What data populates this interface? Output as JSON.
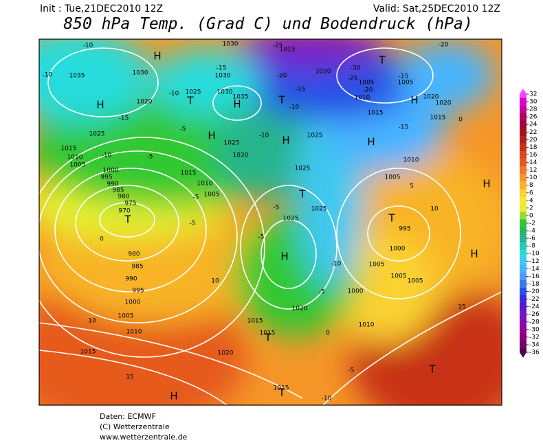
{
  "header": {
    "init": "Init : Tue,21DEC2010 12Z",
    "valid": "Valid: Sat,25DEC2010 12Z",
    "title": "850 hPa Temp. (Grad C) und Bodendruck (hPa)"
  },
  "colorbar": {
    "ticks": [
      32,
      30,
      28,
      26,
      24,
      22,
      20,
      18,
      16,
      14,
      12,
      10,
      8,
      6,
      4,
      2,
      0,
      -2,
      -4,
      -6,
      -8,
      -10,
      -12,
      -14,
      -16,
      -18,
      -20,
      -22,
      -24,
      -26,
      -28,
      -30,
      -32,
      -34,
      -36
    ],
    "colors": [
      "#ff40ff",
      "#e000d0",
      "#c8009a",
      "#b00060",
      "#a00838",
      "#a01414",
      "#b41e1e",
      "#c83214",
      "#dc461e",
      "#e65a1e",
      "#f07828",
      "#f59628",
      "#f8b428",
      "#fad232",
      "#fae632",
      "#e6f032",
      "#96dc32",
      "#32c832",
      "#28b464",
      "#28b48c",
      "#28c8b4",
      "#28dcdc",
      "#3cc8f0",
      "#46b4ff",
      "#5096ff",
      "#3c78f0",
      "#2850e6",
      "#3c28dc",
      "#5a14d2",
      "#7814c8",
      "#8c0ab4",
      "#960096",
      "#8c0078",
      "#780064",
      "#500050"
    ]
  },
  "map": {
    "labels": [
      "H",
      "H",
      "T",
      "H",
      "T",
      "H",
      "H",
      "T",
      "H",
      "T",
      "T",
      "H",
      "H",
      "T",
      "H",
      "H",
      "T",
      "T",
      "T",
      "H",
      "1035",
      "1030",
      "-10",
      "-10",
      "1025",
      "-15",
      "1015",
      "1010",
      "1005",
      "1000",
      "995",
      "990",
      "985",
      "980",
      "975",
      "970",
      "-10",
      "-5",
      "-5",
      "1015",
      "1010",
      "1005",
      "-5",
      "-5",
      "0",
      "980",
      "985",
      "990",
      "995",
      "1000",
      "1005",
      "1010",
      "1015",
      "10",
      "15",
      "10",
      "1015",
      "1020",
      "1015",
      "1020",
      "1025",
      "1025",
      "1025",
      "-5",
      "-5",
      "-10",
      "-5",
      "0",
      "1000",
      "1005",
      "1005",
      "1005",
      "1000",
      "995",
      "1010",
      "1005",
      "1010",
      "5",
      "10",
      "15",
      "-5",
      "-10",
      "1015",
      "1020",
      "1025",
      "-10",
      "1025",
      "1020",
      "-20",
      "-15",
      "-10",
      "1015",
      "-25",
      "1030",
      "-15",
      "1030",
      "1035",
      "1030",
      "1025",
      "-10",
      "1020",
      "-30",
      "-25",
      "-20",
      "1005",
      "1010",
      "1015",
      "-15",
      "1005",
      "1020",
      "1020",
      "1015",
      "-15",
      "-20",
      "0"
    ]
  },
  "footer": {
    "source": "Daten: ECMWF",
    "copyright": "(C) Wetterzentrale",
    "url": "www.wetterzentrale.de"
  }
}
